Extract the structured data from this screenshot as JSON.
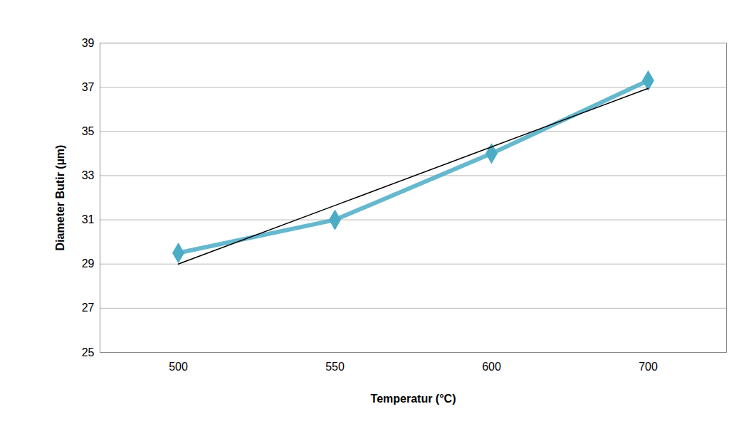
{
  "chart_data": {
    "type": "line",
    "x_label": "Temperatur (°C)",
    "y_label": "Diameter Butir (µm)",
    "categories": [
      500,
      550,
      600,
      700
    ],
    "series": [
      {
        "color": "#4bacc6",
        "values": [
          29.5,
          31.0,
          34.0,
          37.3
        ],
        "marker": "diamond",
        "line_style": "solid"
      },
      {
        "color": "#000000",
        "values": [
          29.0,
          31.65,
          34.3,
          36.95
        ],
        "line_style": "solid"
      }
    ],
    "ylim": [
      25,
      39
    ],
    "yticks": [
      25,
      27,
      29,
      31,
      33,
      35,
      37,
      39
    ],
    "grid": true
  }
}
